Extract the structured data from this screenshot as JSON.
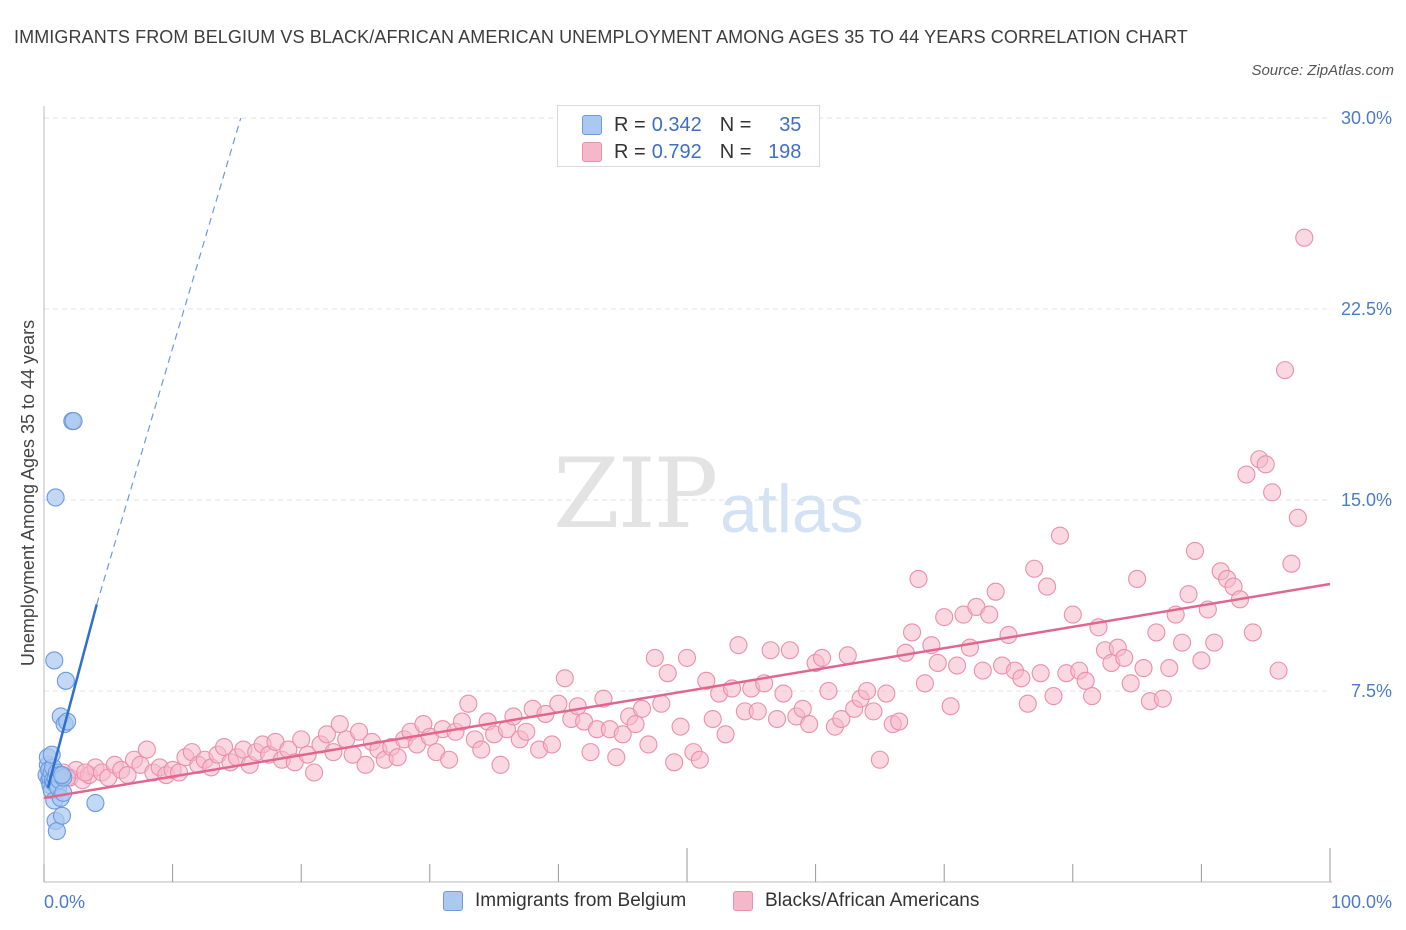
{
  "header": {
    "title": "IMMIGRANTS FROM BELGIUM VS BLACK/AFRICAN AMERICAN UNEMPLOYMENT AMONG AGES 35 TO 44 YEARS CORRELATION CHART",
    "source": "Source: ZipAtlas.com"
  },
  "watermark": {
    "zip": "ZIP",
    "atlas": "atlas"
  },
  "legend_top": {
    "rows": [
      {
        "r_label": "R =",
        "r_value": "0.342",
        "n_label": "N =",
        "n_value": "35"
      },
      {
        "r_label": "R =",
        "r_value": "0.792",
        "n_label": "N =",
        "n_value": "198"
      }
    ]
  },
  "legend_bottom": {
    "items": [
      "Immigrants from Belgium",
      "Blacks/African Americans"
    ]
  },
  "colors": {
    "blue_fill": "#aac8f0",
    "blue_stroke": "#6b9ae0",
    "blue_line": "#2f6fd0",
    "pink_fill": "#f5b8cb",
    "pink_stroke": "#ea8fac",
    "pink_line": "#e06690",
    "grid": "#e0e0e0",
    "tick_text": "#4a7cc9"
  },
  "chart_data": {
    "type": "scatter",
    "title": "IMMIGRANTS FROM BELGIUM VS BLACK/AFRICAN AMERICAN UNEMPLOYMENT AMONG AGES 35 TO 44 YEARS CORRELATION CHART",
    "xlabel": "",
    "ylabel": "Unemployment Among Ages 35 to 44 years",
    "xlim": [
      0,
      100
    ],
    "ylim": [
      0,
      30
    ],
    "x_tick_labels": [
      "0.0%",
      "100.0%"
    ],
    "y_ticks": [
      7.5,
      15.0,
      22.5,
      30.0
    ],
    "y_tick_labels": [
      "7.5%",
      "15.0%",
      "22.5%",
      "30.0%"
    ],
    "grid": true,
    "legend_placement": "bottom",
    "series": [
      {
        "name": "Immigrants from Belgium",
        "color": "#aac8f0",
        "points": [
          [
            0.2,
            4.2
          ],
          [
            0.3,
            4.6
          ],
          [
            0.3,
            4.9
          ],
          [
            0.4,
            4.0
          ],
          [
            0.4,
            4.4
          ],
          [
            0.5,
            3.8
          ],
          [
            0.5,
            4.1
          ],
          [
            0.6,
            4.3
          ],
          [
            0.6,
            3.6
          ],
          [
            0.7,
            4.0
          ],
          [
            0.7,
            4.5
          ],
          [
            0.8,
            3.9
          ],
          [
            0.8,
            3.2
          ],
          [
            0.9,
            4.1
          ],
          [
            0.9,
            2.4
          ],
          [
            1.0,
            2.0
          ],
          [
            1.0,
            4.3
          ],
          [
            1.1,
            3.7
          ],
          [
            1.2,
            4.2
          ],
          [
            1.2,
            4.0
          ],
          [
            1.3,
            3.3
          ],
          [
            1.3,
            6.5
          ],
          [
            1.4,
            2.6
          ],
          [
            1.5,
            3.5
          ],
          [
            1.5,
            4.1
          ],
          [
            1.6,
            6.2
          ],
          [
            1.7,
            7.9
          ],
          [
            1.8,
            6.3
          ],
          [
            0.8,
            8.7
          ],
          [
            0.9,
            15.1
          ],
          [
            2.2,
            18.1
          ],
          [
            2.3,
            18.1
          ],
          [
            4.0,
            3.1
          ],
          [
            1.4,
            4.2
          ],
          [
            0.6,
            5.0
          ]
        ]
      },
      {
        "name": "Blacks/African Americans",
        "color": "#f5b8cb",
        "points": [
          [
            0.5,
            4.2
          ],
          [
            1.0,
            4.0
          ],
          [
            1.5,
            4.3
          ],
          [
            2.0,
            4.1
          ],
          [
            2.5,
            4.4
          ],
          [
            3.0,
            4.0
          ],
          [
            3.5,
            4.2
          ],
          [
            4.0,
            4.5
          ],
          [
            4.5,
            4.3
          ],
          [
            5.0,
            4.1
          ],
          [
            5.5,
            4.6
          ],
          [
            6.0,
            4.4
          ],
          [
            6.5,
            4.2
          ],
          [
            7.0,
            4.8
          ],
          [
            7.5,
            4.6
          ],
          [
            8.0,
            5.2
          ],
          [
            8.5,
            4.3
          ],
          [
            9.0,
            4.5
          ],
          [
            9.5,
            4.2
          ],
          [
            10.0,
            4.4
          ],
          [
            10.5,
            4.3
          ],
          [
            11.0,
            4.9
          ],
          [
            11.5,
            5.1
          ],
          [
            12.0,
            4.6
          ],
          [
            12.5,
            4.8
          ],
          [
            13.0,
            4.5
          ],
          [
            13.5,
            5.0
          ],
          [
            14.0,
            5.3
          ],
          [
            14.5,
            4.7
          ],
          [
            15.0,
            4.9
          ],
          [
            15.5,
            5.2
          ],
          [
            16.0,
            4.6
          ],
          [
            16.5,
            5.1
          ],
          [
            17.0,
            5.4
          ],
          [
            17.5,
            5.0
          ],
          [
            18.0,
            5.5
          ],
          [
            18.5,
            4.8
          ],
          [
            19.0,
            5.2
          ],
          [
            19.5,
            4.7
          ],
          [
            20.0,
            5.6
          ],
          [
            20.5,
            5.0
          ],
          [
            21.0,
            4.3
          ],
          [
            21.5,
            5.4
          ],
          [
            22.0,
            5.8
          ],
          [
            22.5,
            5.1
          ],
          [
            23.0,
            6.2
          ],
          [
            23.5,
            5.6
          ],
          [
            24.0,
            5.0
          ],
          [
            24.5,
            5.9
          ],
          [
            25.0,
            4.6
          ],
          [
            25.5,
            5.5
          ],
          [
            26.0,
            5.2
          ],
          [
            26.5,
            4.8
          ],
          [
            27.0,
            5.3
          ],
          [
            27.5,
            4.9
          ],
          [
            28.0,
            5.6
          ],
          [
            28.5,
            5.9
          ],
          [
            29.0,
            5.4
          ],
          [
            29.5,
            6.2
          ],
          [
            30.0,
            5.7
          ],
          [
            30.5,
            5.1
          ],
          [
            31.0,
            6.0
          ],
          [
            31.5,
            4.8
          ],
          [
            32.0,
            5.9
          ],
          [
            32.5,
            6.3
          ],
          [
            33.0,
            7.0
          ],
          [
            33.5,
            5.6
          ],
          [
            34.0,
            5.2
          ],
          [
            34.5,
            6.3
          ],
          [
            35.0,
            5.8
          ],
          [
            35.5,
            4.6
          ],
          [
            36.0,
            6.0
          ],
          [
            36.5,
            6.5
          ],
          [
            37.0,
            5.6
          ],
          [
            37.5,
            5.9
          ],
          [
            38.0,
            6.8
          ],
          [
            38.5,
            5.2
          ],
          [
            39.0,
            6.6
          ],
          [
            39.5,
            5.4
          ],
          [
            40.0,
            7.0
          ],
          [
            40.5,
            8.0
          ],
          [
            41.0,
            6.4
          ],
          [
            41.5,
            6.9
          ],
          [
            42.0,
            6.3
          ],
          [
            42.5,
            5.1
          ],
          [
            43.0,
            6.0
          ],
          [
            43.5,
            7.2
          ],
          [
            44.0,
            6.0
          ],
          [
            44.5,
            4.9
          ],
          [
            45.0,
            5.8
          ],
          [
            45.5,
            6.5
          ],
          [
            46.0,
            6.2
          ],
          [
            46.5,
            6.8
          ],
          [
            47.0,
            5.4
          ],
          [
            47.5,
            8.8
          ],
          [
            48.0,
            7.0
          ],
          [
            48.5,
            8.2
          ],
          [
            49.0,
            4.7
          ],
          [
            49.5,
            6.1
          ],
          [
            50.0,
            8.8
          ],
          [
            50.5,
            5.1
          ],
          [
            51.0,
            4.8
          ],
          [
            51.5,
            7.9
          ],
          [
            52.0,
            6.4
          ],
          [
            52.5,
            7.4
          ],
          [
            53.0,
            5.8
          ],
          [
            53.5,
            7.6
          ],
          [
            54.0,
            9.3
          ],
          [
            54.5,
            6.7
          ],
          [
            55.0,
            7.6
          ],
          [
            55.5,
            6.7
          ],
          [
            56.0,
            7.8
          ],
          [
            56.5,
            9.1
          ],
          [
            57.0,
            6.4
          ],
          [
            57.5,
            7.4
          ],
          [
            58.0,
            9.1
          ],
          [
            58.5,
            6.5
          ],
          [
            59.0,
            6.8
          ],
          [
            59.5,
            6.2
          ],
          [
            60.0,
            8.6
          ],
          [
            60.5,
            8.8
          ],
          [
            61.0,
            7.5
          ],
          [
            61.5,
            6.1
          ],
          [
            62.0,
            6.4
          ],
          [
            62.5,
            8.9
          ],
          [
            63.0,
            6.8
          ],
          [
            63.5,
            7.2
          ],
          [
            64.0,
            7.5
          ],
          [
            64.5,
            6.7
          ],
          [
            65.0,
            4.8
          ],
          [
            65.5,
            7.4
          ],
          [
            66.0,
            6.2
          ],
          [
            66.5,
            6.3
          ],
          [
            67.0,
            9.0
          ],
          [
            67.5,
            9.8
          ],
          [
            68.0,
            11.9
          ],
          [
            68.5,
            7.8
          ],
          [
            69.0,
            9.3
          ],
          [
            69.5,
            8.6
          ],
          [
            70.0,
            10.4
          ],
          [
            70.5,
            6.9
          ],
          [
            71.0,
            8.5
          ],
          [
            71.5,
            10.5
          ],
          [
            72.0,
            9.2
          ],
          [
            72.5,
            10.8
          ],
          [
            73.0,
            8.3
          ],
          [
            73.5,
            10.5
          ],
          [
            74.0,
            11.4
          ],
          [
            74.5,
            8.5
          ],
          [
            75.0,
            9.7
          ],
          [
            75.5,
            8.3
          ],
          [
            76.0,
            8.0
          ],
          [
            76.5,
            7.0
          ],
          [
            77.0,
            12.3
          ],
          [
            77.5,
            8.2
          ],
          [
            78.0,
            11.6
          ],
          [
            78.5,
            7.3
          ],
          [
            79.0,
            13.6
          ],
          [
            79.5,
            8.2
          ],
          [
            80.0,
            10.5
          ],
          [
            80.5,
            8.3
          ],
          [
            81.0,
            7.9
          ],
          [
            81.5,
            7.3
          ],
          [
            82.0,
            10.0
          ],
          [
            82.5,
            9.1
          ],
          [
            83.0,
            8.6
          ],
          [
            83.5,
            9.2
          ],
          [
            84.0,
            8.8
          ],
          [
            84.5,
            7.8
          ],
          [
            85.0,
            11.9
          ],
          [
            85.5,
            8.4
          ],
          [
            86.0,
            7.1
          ],
          [
            86.5,
            9.8
          ],
          [
            87.0,
            7.2
          ],
          [
            87.5,
            8.4
          ],
          [
            88.0,
            10.5
          ],
          [
            88.5,
            9.4
          ],
          [
            89.0,
            11.3
          ],
          [
            89.5,
            13.0
          ],
          [
            90.0,
            8.7
          ],
          [
            90.5,
            10.7
          ],
          [
            91.0,
            9.4
          ],
          [
            91.5,
            12.2
          ],
          [
            92.0,
            11.9
          ],
          [
            92.5,
            11.6
          ],
          [
            93.0,
            11.1
          ],
          [
            93.5,
            16.0
          ],
          [
            94.0,
            9.8
          ],
          [
            94.5,
            16.6
          ],
          [
            95.0,
            16.4
          ],
          [
            95.5,
            15.3
          ],
          [
            96.0,
            8.3
          ],
          [
            96.5,
            20.1
          ],
          [
            97.0,
            12.5
          ],
          [
            97.5,
            14.3
          ],
          [
            98.0,
            25.3
          ],
          [
            1.8,
            4.1
          ],
          [
            3.2,
            4.3
          ]
        ]
      }
    ],
    "trend_lines": [
      {
        "series": "Immigrants from Belgium",
        "solid": [
          [
            0.3,
            3.7
          ],
          [
            4.1,
            10.9
          ]
        ],
        "dashed": [
          [
            4.1,
            10.9
          ],
          [
            15.3,
            30.0
          ]
        ]
      },
      {
        "series": "Blacks/African Americans",
        "solid": [
          [
            0.0,
            3.3
          ],
          [
            100.0,
            11.7
          ]
        ]
      }
    ]
  }
}
